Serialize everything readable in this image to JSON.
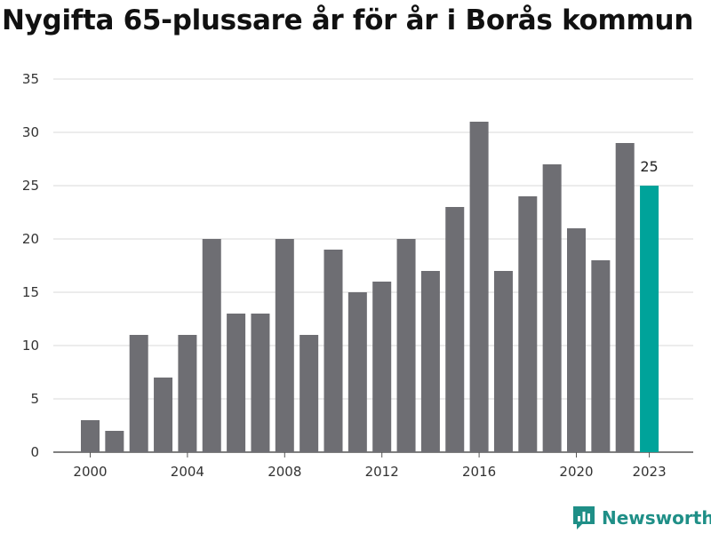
{
  "title": "Nygifta 65-plussare år för år i Borås kommun",
  "brand": {
    "name": "Newsworthy"
  },
  "colors": {
    "bar": "#6e6e73",
    "highlight": "#00a39a",
    "grid": "#d9d9d9",
    "brand": "#1f8f87"
  },
  "chart_data": {
    "type": "bar",
    "title": "Nygifta 65-plussare år för år i Borås kommun",
    "categories": [
      2000,
      2001,
      2002,
      2003,
      2004,
      2005,
      2006,
      2007,
      2008,
      2009,
      2010,
      2011,
      2012,
      2013,
      2014,
      2015,
      2016,
      2017,
      2018,
      2019,
      2020,
      2021,
      2022,
      2023
    ],
    "values": [
      3,
      2,
      11,
      7,
      11,
      20,
      13,
      13,
      20,
      11,
      19,
      15,
      16,
      20,
      17,
      23,
      31,
      17,
      24,
      27,
      21,
      18,
      29,
      25
    ],
    "xticks": [
      2000,
      2004,
      2008,
      2012,
      2016,
      2020,
      2023
    ],
    "yticks": [
      0,
      5,
      10,
      15,
      20,
      25,
      30,
      35
    ],
    "ylim": [
      0,
      35
    ],
    "grid": true,
    "highlight": {
      "category": 2023,
      "label": "25"
    },
    "xlabel": "",
    "ylabel": ""
  }
}
